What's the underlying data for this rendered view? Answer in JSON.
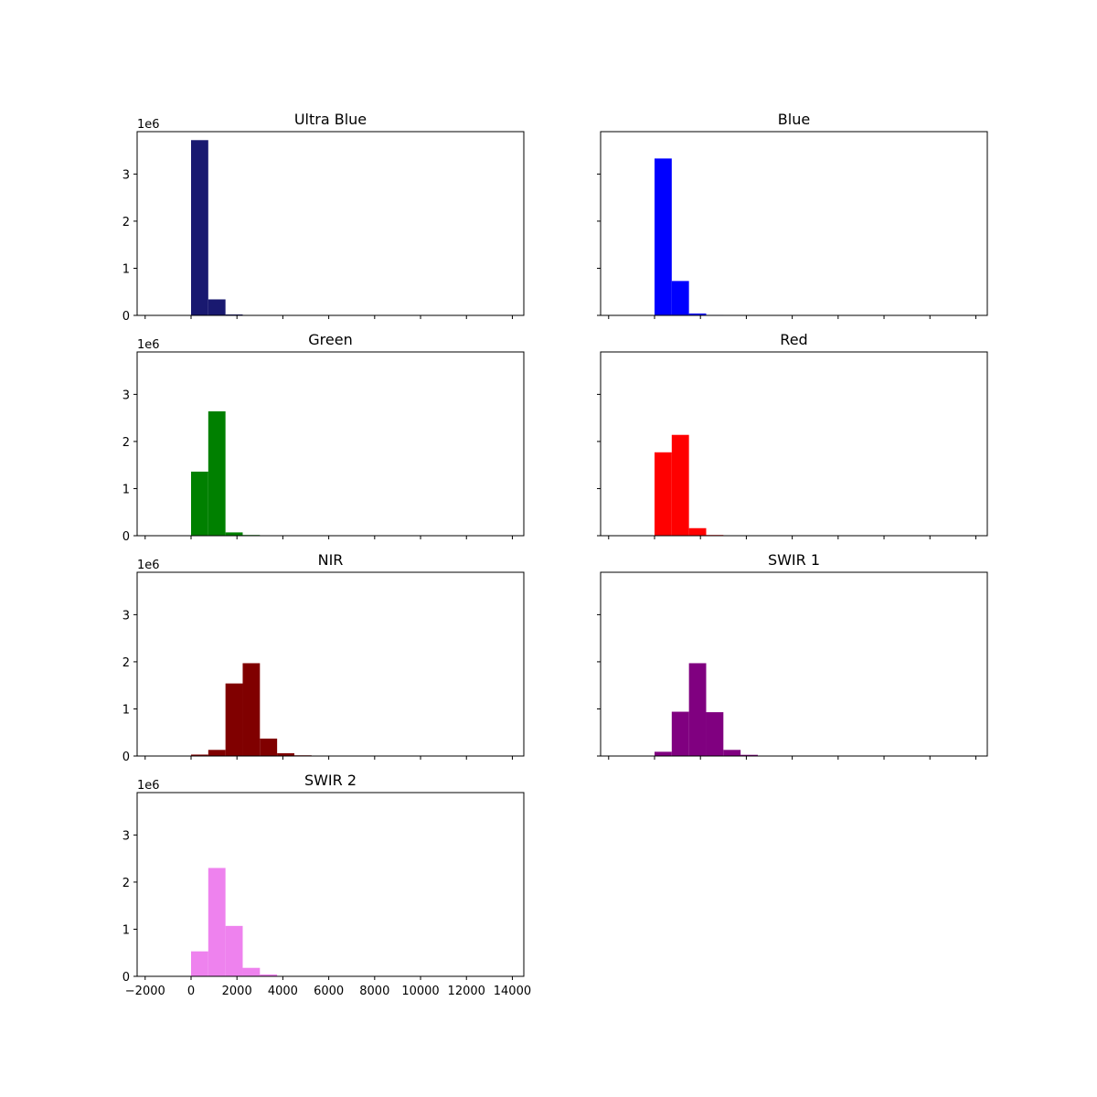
{
  "figure": {
    "background": "#ffffff"
  },
  "chart_data": [
    {
      "type": "bar",
      "title": "Ultra Blue",
      "color": "#191970",
      "bin_width": 750,
      "bin_start": 0,
      "values": [
        3720000,
        340000,
        20000,
        6000,
        0,
        0,
        0,
        0,
        0,
        0,
        0,
        0,
        0,
        0,
        0,
        0,
        0,
        0
      ],
      "xlim": [
        -2350,
        14500
      ],
      "ylim": [
        0,
        3900000
      ],
      "y_ticks": [
        "0",
        "1",
        "2",
        "3"
      ],
      "y_tick_values": [
        0,
        1000000,
        2000000,
        3000000
      ],
      "y_offset_label": "1e6",
      "x_ticks": [
        "-2000",
        "0",
        "2000",
        "4000",
        "6000",
        "8000",
        "10000",
        "12000",
        "14000"
      ],
      "x_tick_values": [
        -2000,
        0,
        2000,
        4000,
        6000,
        8000,
        10000,
        12000,
        14000
      ],
      "show_x_tick_labels": false,
      "show_y_tick_labels": true
    },
    {
      "type": "bar",
      "title": "Blue",
      "color": "#0000ff",
      "bin_width": 750,
      "bin_start": 0,
      "values": [
        3330000,
        730000,
        40000,
        10000,
        0,
        0,
        0,
        0,
        0,
        0,
        0,
        0,
        0,
        0,
        0,
        0,
        0,
        0
      ],
      "xlim": [
        -2350,
        14500
      ],
      "ylim": [
        0,
        3900000
      ],
      "y_ticks": [
        "0",
        "1",
        "2",
        "3"
      ],
      "y_tick_values": [
        0,
        1000000,
        2000000,
        3000000
      ],
      "y_offset_label": "",
      "x_ticks": [
        "-2000",
        "0",
        "2000",
        "4000",
        "6000",
        "8000",
        "10000",
        "12000",
        "14000"
      ],
      "x_tick_values": [
        -2000,
        0,
        2000,
        4000,
        6000,
        8000,
        10000,
        12000,
        14000
      ],
      "show_x_tick_labels": false,
      "show_y_tick_labels": false
    },
    {
      "type": "bar",
      "title": "Green",
      "color": "#008000",
      "bin_width": 750,
      "bin_start": 0,
      "values": [
        1360000,
        2640000,
        70000,
        15000,
        5000,
        0,
        0,
        0,
        0,
        0,
        0,
        0,
        0,
        0,
        0,
        0,
        0,
        0
      ],
      "xlim": [
        -2350,
        14500
      ],
      "ylim": [
        0,
        3900000
      ],
      "y_ticks": [
        "0",
        "1",
        "2",
        "3"
      ],
      "y_tick_values": [
        0,
        1000000,
        2000000,
        3000000
      ],
      "y_offset_label": "1e6",
      "x_ticks": [
        "-2000",
        "0",
        "2000",
        "4000",
        "6000",
        "8000",
        "10000",
        "12000",
        "14000"
      ],
      "x_tick_values": [
        -2000,
        0,
        2000,
        4000,
        6000,
        8000,
        10000,
        12000,
        14000
      ],
      "show_x_tick_labels": false,
      "show_y_tick_labels": true
    },
    {
      "type": "bar",
      "title": "Red",
      "color": "#ff0000",
      "bin_width": 750,
      "bin_start": 0,
      "values": [
        1770000,
        2140000,
        160000,
        15000,
        5000,
        0,
        0,
        0,
        0,
        0,
        0,
        0,
        0,
        0,
        0,
        0,
        0,
        0
      ],
      "xlim": [
        -2350,
        14500
      ],
      "ylim": [
        0,
        3900000
      ],
      "y_ticks": [
        "0",
        "1",
        "2",
        "3"
      ],
      "y_tick_values": [
        0,
        1000000,
        2000000,
        3000000
      ],
      "y_offset_label": "",
      "x_ticks": [
        "-2000",
        "0",
        "2000",
        "4000",
        "6000",
        "8000",
        "10000",
        "12000",
        "14000"
      ],
      "x_tick_values": [
        -2000,
        0,
        2000,
        4000,
        6000,
        8000,
        10000,
        12000,
        14000
      ],
      "show_x_tick_labels": false,
      "show_y_tick_labels": false
    },
    {
      "type": "bar",
      "title": "NIR",
      "color": "#800000",
      "bin_width": 750,
      "bin_start": 0,
      "values": [
        30000,
        130000,
        1540000,
        1970000,
        370000,
        60000,
        15000,
        3000,
        0,
        0,
        0,
        0,
        0,
        0,
        0,
        0,
        0,
        0
      ],
      "xlim": [
        -2350,
        14500
      ],
      "ylim": [
        0,
        3900000
      ],
      "y_ticks": [
        "0",
        "1",
        "2",
        "3"
      ],
      "y_tick_values": [
        0,
        1000000,
        2000000,
        3000000
      ],
      "y_offset_label": "1e6",
      "x_ticks": [
        "-2000",
        "0",
        "2000",
        "4000",
        "6000",
        "8000",
        "10000",
        "12000",
        "14000"
      ],
      "x_tick_values": [
        -2000,
        0,
        2000,
        4000,
        6000,
        8000,
        10000,
        12000,
        14000
      ],
      "show_x_tick_labels": false,
      "show_y_tick_labels": true
    },
    {
      "type": "bar",
      "title": "SWIR 1",
      "color": "#800080",
      "bin_width": 750,
      "bin_start": 0,
      "values": [
        90000,
        940000,
        1970000,
        930000,
        130000,
        25000,
        5000,
        0,
        0,
        0,
        0,
        0,
        0,
        0,
        0,
        0,
        0,
        0
      ],
      "xlim": [
        -2350,
        14500
      ],
      "ylim": [
        0,
        3900000
      ],
      "y_ticks": [
        "0",
        "1",
        "2",
        "3"
      ],
      "y_tick_values": [
        0,
        1000000,
        2000000,
        3000000
      ],
      "y_offset_label": "",
      "x_ticks": [
        "-2000",
        "0",
        "2000",
        "4000",
        "6000",
        "8000",
        "10000",
        "12000",
        "14000"
      ],
      "x_tick_values": [
        -2000,
        0,
        2000,
        4000,
        6000,
        8000,
        10000,
        12000,
        14000
      ],
      "show_x_tick_labels": false,
      "show_y_tick_labels": false
    },
    {
      "type": "bar",
      "title": "SWIR 2",
      "color": "#ee82ee",
      "bin_width": 750,
      "bin_start": 0,
      "values": [
        530000,
        2300000,
        1070000,
        180000,
        40000,
        5000,
        0,
        0,
        0,
        0,
        0,
        0,
        0,
        0,
        0,
        0,
        0,
        0
      ],
      "xlim": [
        -2350,
        14500
      ],
      "ylim": [
        0,
        3900000
      ],
      "y_ticks": [
        "0",
        "1",
        "2",
        "3"
      ],
      "y_tick_values": [
        0,
        1000000,
        2000000,
        3000000
      ],
      "y_offset_label": "1e6",
      "x_ticks": [
        "-2000",
        "0",
        "2000",
        "4000",
        "6000",
        "8000",
        "10000",
        "12000",
        "14000"
      ],
      "x_tick_values": [
        -2000,
        0,
        2000,
        4000,
        6000,
        8000,
        10000,
        12000,
        14000
      ],
      "show_x_tick_labels": true,
      "show_y_tick_labels": true
    }
  ]
}
